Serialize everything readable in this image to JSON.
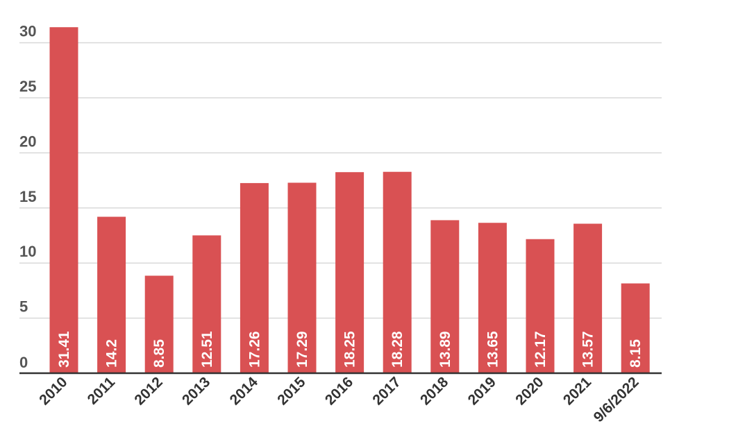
{
  "chart_data": {
    "type": "bar",
    "categories": [
      "2010",
      "2011",
      "2012",
      "2013",
      "2014",
      "2015",
      "2016",
      "2017",
      "2018",
      "2019",
      "2020",
      "2021",
      "9/6/2022"
    ],
    "values": [
      31.41,
      14.2,
      8.85,
      12.51,
      17.26,
      17.29,
      18.25,
      18.28,
      13.89,
      13.65,
      12.17,
      13.57,
      8.15
    ],
    "data_labels": [
      "31.41",
      "14.2",
      "8.85",
      "12.51",
      "17.26",
      "17.29",
      "18.25",
      "18.28",
      "13.89",
      "13.65",
      "12.17",
      "13.57",
      "8.15"
    ],
    "yticks": [
      "0",
      "5",
      "10",
      "15",
      "20",
      "25",
      "30"
    ],
    "ylim": [
      0,
      30
    ],
    "grid": true,
    "legend": "none",
    "bar_color": "#d95153",
    "axis_color": "#333333",
    "grid_color": "#d9d9d9"
  }
}
